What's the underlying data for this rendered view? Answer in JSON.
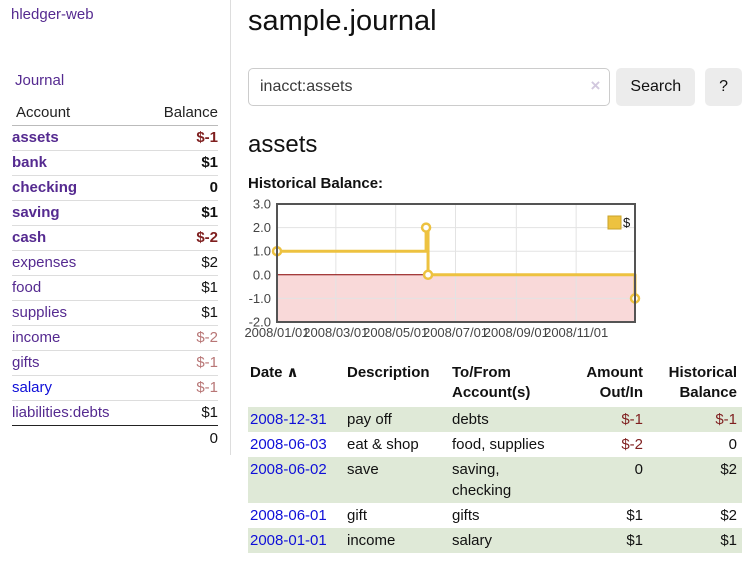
{
  "sidebar": {
    "app_title": "hledger-web",
    "journal_link": "Journal",
    "accounts": {
      "header_account": "Account",
      "header_balance": "Balance",
      "rows": [
        {
          "account": "assets",
          "balance": "$-1"
        },
        {
          "account": "bank",
          "balance": "$1"
        },
        {
          "account": "checking",
          "balance": "0"
        },
        {
          "account": "saving",
          "balance": "$1"
        },
        {
          "account": "cash",
          "balance": "$-2"
        },
        {
          "account": "expenses",
          "balance": "$2"
        },
        {
          "account": "food",
          "balance": "$1"
        },
        {
          "account": "supplies",
          "balance": "$1"
        },
        {
          "account": "income",
          "balance": "$-2"
        },
        {
          "account": "gifts",
          "balance": "$-1"
        },
        {
          "account": "salary",
          "balance": "$-1"
        },
        {
          "account": "liabilities:debts",
          "balance": "$1"
        }
      ],
      "total_balance": "0"
    }
  },
  "main": {
    "title": "sample.journal",
    "search": {
      "value": "inacct:assets",
      "clear_icon": "×",
      "button_label": "Search",
      "help_label": "?"
    },
    "account_heading": "assets",
    "chart_heading": "Historical Balance:"
  },
  "register": {
    "headers": {
      "date": "Date",
      "sort_asc_icon": "∧",
      "description": "Description",
      "account_line1": "To/From",
      "account_line2": "Account(s)",
      "amount_line1": "Amount",
      "amount_line2": "Out/In",
      "balance_line1": "Historical",
      "balance_line2": "Balance"
    },
    "rows": [
      {
        "date": "2008-12-31",
        "description": "pay off",
        "accounts": "debts",
        "amount": "$-1",
        "balance": "$-1"
      },
      {
        "date": "2008-06-03",
        "description": "eat & shop",
        "accounts": "food, supplies",
        "amount": "$-2",
        "balance": "0"
      },
      {
        "date": "2008-06-02",
        "description": "save",
        "accounts": "saving, checking",
        "amount": "0",
        "balance": "$2"
      },
      {
        "date": "2008-06-01",
        "description": "gift",
        "accounts": "gifts",
        "amount": "$1",
        "balance": "$2"
      },
      {
        "date": "2008-01-01",
        "description": "income",
        "accounts": "salary",
        "amount": "$1",
        "balance": "$1"
      }
    ]
  },
  "colors": {
    "link_purple": "#552a90",
    "link_blue": "#0f0fd8",
    "negative_strong": "#7f1f1f",
    "negative_weak": "#b87676",
    "row_stripe_green": "#dfe9d7",
    "chart_line": "#edc240",
    "chart_negative_region": "#f9d9d9",
    "chart_zero_line": "#8b0000",
    "chart_border": "#545454"
  },
  "chart_data": {
    "type": "line",
    "step": true,
    "title": "Historical Balance:",
    "series": [
      {
        "name": "$",
        "color": "#edc240",
        "points": [
          [
            "2008-01-01",
            1
          ],
          [
            "2008-06-01",
            2
          ],
          [
            "2008-06-03",
            0
          ],
          [
            "2008-12-31",
            -1
          ]
        ]
      }
    ],
    "x_range": [
      "2008-01-01",
      "2008-12-31"
    ],
    "x_ticks": [
      "2008/01/01",
      "2008/03/01",
      "2008/05/01",
      "2008/07/01",
      "2008/09/01",
      "2008/11/01"
    ],
    "y_ticks": [
      3.0,
      2.0,
      1.0,
      0.0,
      -1.0,
      -2.0
    ],
    "ylim": [
      -2,
      3
    ],
    "grid": true,
    "legend_position": "top-right",
    "negative_region_color": "#f9d9d9",
    "zero_line_color": "#8b0000",
    "border_color": "#545454",
    "grid_color": "#e3e3e3"
  }
}
